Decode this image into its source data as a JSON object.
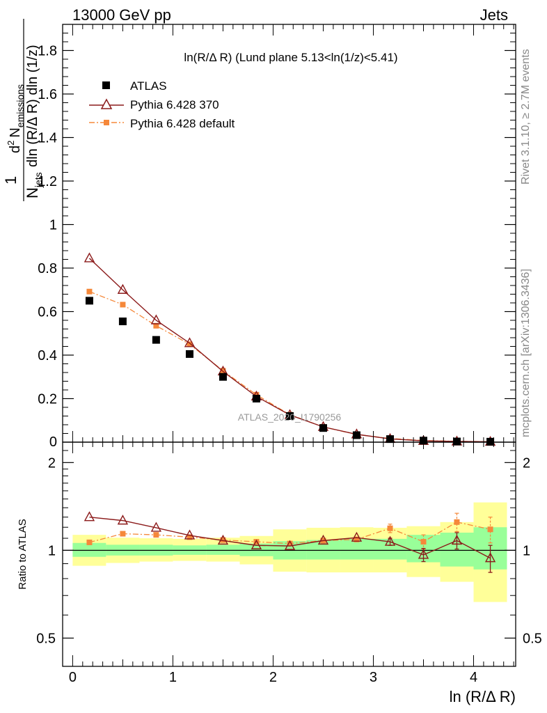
{
  "header": {
    "left_title": "13000 GeV pp",
    "right_title": "Jets"
  },
  "side_labels": {
    "rivet": "Rivet 3.1.10, ≥ 2.7M events",
    "mcplots": "mcplots.cern.ch [arXiv:1306.3436]"
  },
  "watermark": "ATLAS_2020_I1790256",
  "colors": {
    "atlas": "#000000",
    "pythia370": "#8b1a1a",
    "pythia_default": "#f5883a",
    "band_inner": "#99ff99",
    "band_outer": "#ffff99"
  },
  "chart_data": [
    {
      "type": "scatter",
      "title": "ln(R/Δ R) (Lund plane 5.13<ln(1/z)<5.41)",
      "ylabel_parts": {
        "one": "1",
        "njets": "N",
        "njets_sub": "jets",
        "d2": "d",
        "d2_sup": "2",
        "nem": "N",
        "nem_sub": "emissions",
        "den": "dln (R/Δ R) dln (1/z)"
      },
      "xlim": [
        -0.1,
        4.42
      ],
      "ylim": [
        0,
        1.92
      ],
      "yticks": [
        0.2,
        0.4,
        0.6,
        0.8,
        1,
        1.2,
        1.4,
        1.6,
        1.8
      ],
      "ytick_labels": [
        "0.2",
        "0.4",
        "0.6",
        "0.8",
        "1",
        "1.2",
        "1.4",
        "1.6",
        "1.8"
      ],
      "x": [
        0.167,
        0.5,
        0.833,
        1.167,
        1.5,
        1.833,
        2.167,
        2.5,
        2.833,
        3.167,
        3.5,
        3.833,
        4.167
      ],
      "series": [
        {
          "name": "ATLAS",
          "marker": "square",
          "values": [
            0.65,
            0.555,
            0.47,
            0.405,
            0.3,
            0.2,
            0.12,
            0.065,
            0.032,
            0.014,
            0.007,
            0.003,
            0.002
          ]
        },
        {
          "name": "Pythia 6.428 370",
          "marker": "open-triangle",
          "values": [
            0.845,
            0.7,
            0.56,
            0.455,
            0.325,
            0.21,
            0.125,
            0.07,
            0.036,
            0.015,
            0.006,
            0.0032,
            0.0017
          ]
        },
        {
          "name": "Pythia 6.428 default",
          "marker": "small-square-dashdot",
          "values": [
            0.692,
            0.632,
            0.535,
            0.45,
            0.328,
            0.218,
            0.126,
            0.07,
            0.035,
            0.017,
            0.0075,
            0.0038,
            0.0023
          ]
        }
      ]
    },
    {
      "type": "line",
      "ylabel": "Ratio to ATLAS",
      "xlabel": "ln (R/Δ R)",
      "scale": "log",
      "xlim": [
        -0.1,
        4.42
      ],
      "ylim": [
        0.4,
        2.35
      ],
      "yticks": [
        0.5,
        1,
        2
      ],
      "ytick_labels": [
        "0.5",
        "1",
        "2"
      ],
      "xticks": [
        0,
        1,
        2,
        3,
        4
      ],
      "xtick_labels": [
        "0",
        "1",
        "2",
        "3",
        "4"
      ],
      "x": [
        0.167,
        0.5,
        0.833,
        1.167,
        1.5,
        1.833,
        2.167,
        2.5,
        2.833,
        3.167,
        3.5,
        3.833,
        4.167
      ],
      "band_edges": [
        0,
        0.333,
        0.667,
        1.0,
        1.333,
        1.667,
        2.0,
        2.333,
        2.667,
        3.0,
        3.333,
        3.667,
        4.0,
        4.333
      ],
      "band_inner_low": [
        0.95,
        0.96,
        0.96,
        0.965,
        0.965,
        0.955,
        0.93,
        0.93,
        0.93,
        0.93,
        0.91,
        0.88,
        0.86
      ],
      "band_inner_high": [
        1.06,
        1.045,
        1.045,
        1.04,
        1.045,
        1.055,
        1.075,
        1.085,
        1.095,
        1.095,
        1.13,
        1.15,
        1.2
      ],
      "band_outer_low": [
        0.885,
        0.905,
        0.915,
        0.92,
        0.915,
        0.895,
        0.845,
        0.84,
        0.84,
        0.84,
        0.81,
        0.78,
        0.665
      ],
      "band_outer_high": [
        1.13,
        1.105,
        1.1,
        1.095,
        1.105,
        1.12,
        1.18,
        1.195,
        1.2,
        1.195,
        1.21,
        1.25,
        1.46
      ],
      "series": [
        {
          "name": "Pythia 6.428 370",
          "values": [
            1.3,
            1.265,
            1.195,
            1.125,
            1.08,
            1.04,
            1.035,
            1.08,
            1.105,
            1.07,
            0.965,
            1.08,
            0.94
          ],
          "err": [
            0,
            0,
            0,
            0,
            0,
            0,
            0,
            0,
            0,
            0.03,
            0.05,
            0.07,
            0.1
          ]
        },
        {
          "name": "Pythia 6.428 default",
          "values": [
            1.065,
            1.14,
            1.13,
            1.11,
            1.085,
            1.07,
            1.055,
            1.08,
            1.09,
            1.19,
            1.07,
            1.25,
            1.18
          ],
          "err": [
            0,
            0,
            0,
            0,
            0,
            0,
            0,
            0,
            0.02,
            0.04,
            0.06,
            0.09,
            0.12
          ]
        }
      ]
    }
  ]
}
